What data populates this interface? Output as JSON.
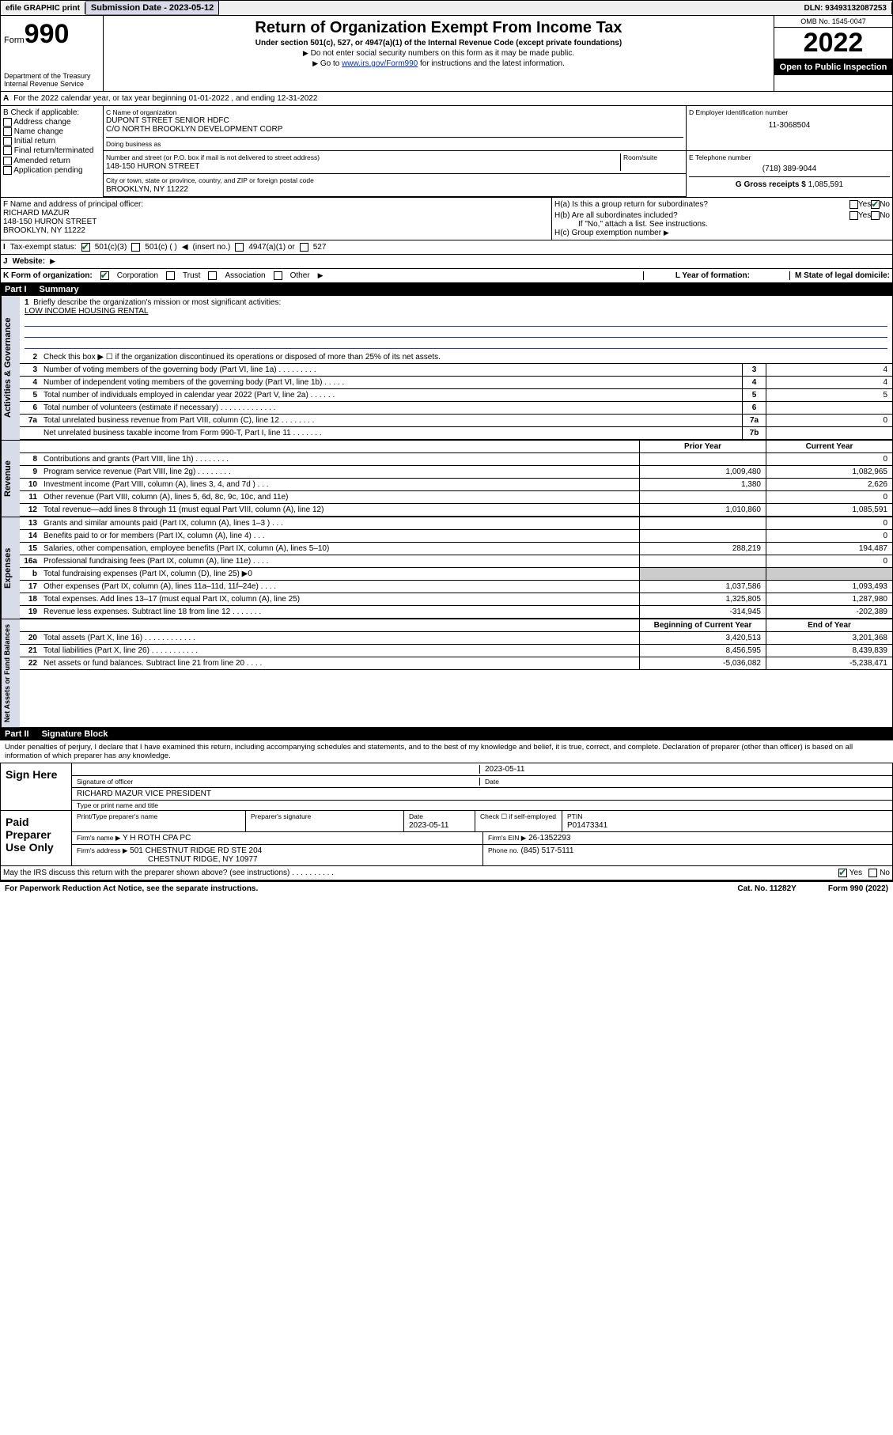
{
  "header_bar": {
    "efile": "efile GRAPHIC print",
    "sub_label": "Submission Date - 2023-05-12",
    "dln": "DLN: 93493132087253"
  },
  "top": {
    "form_prefix": "Form",
    "form_num": "990",
    "dept": "Department of the Treasury",
    "irs": "Internal Revenue Service",
    "title": "Return of Organization Exempt From Income Tax",
    "sub1": "Under section 501(c), 527, or 4947(a)(1) of the Internal Revenue Code (except private foundations)",
    "sub2": "Do not enter social security numbers on this form as it may be made public.",
    "sub3_pre": "Go to ",
    "sub3_link": "www.irs.gov/Form990",
    "sub3_post": " for instructions and the latest information.",
    "omb": "OMB No. 1545-0047",
    "year": "2022",
    "open": "Open to Public Inspection"
  },
  "line_a": "For the 2022 calendar year, or tax year beginning 01-01-2022    , and ending 12-31-2022",
  "box_b": {
    "hdr": "B Check if applicable:",
    "items": [
      "Address change",
      "Name change",
      "Initial return",
      "Final return/terminated",
      "Amended return",
      "Application pending"
    ]
  },
  "box_c": {
    "label": "C Name of organization",
    "name1": "DUPONT STREET SENIOR HDFC",
    "name2": "C/O NORTH BROOKLYN DEVELOPMENT CORP",
    "dba_label": "Doing business as",
    "addr_label": "Number and street (or P.O. box if mail is not delivered to street address)",
    "room_label": "Room/suite",
    "addr": "148-150 HURON STREET",
    "city_label": "City or town, state or province, country, and ZIP or foreign postal code",
    "city": "BROOKLYN, NY  11222"
  },
  "box_d": {
    "label": "D Employer identification number",
    "val": "11-3068504"
  },
  "box_e": {
    "label": "E Telephone number",
    "val": "(718) 389-9044"
  },
  "box_g": {
    "label": "G Gross receipts $",
    "val": "1,085,591"
  },
  "box_f": {
    "label": "F  Name and address of principal officer:",
    "name": "RICHARD MAZUR",
    "addr1": "148-150 HURON STREET",
    "addr2": "BROOKLYN, NY  11222"
  },
  "box_h": {
    "ha": "H(a)  Is this a group return for subordinates?",
    "hb": "H(b)  Are all subordinates included?",
    "hb2": "If \"No,\" attach a list. See instructions.",
    "hc": "H(c)  Group exemption number",
    "yes": "Yes",
    "no": "No"
  },
  "row_i": {
    "label": "Tax-exempt status:",
    "o1": "501(c)(3)",
    "o2": "501(c) (  )",
    "o2b": "(insert no.)",
    "o3": "4947(a)(1) or",
    "o4": "527"
  },
  "row_j": "Website:",
  "row_k": {
    "label": "K Form of organization:",
    "o1": "Corporation",
    "o2": "Trust",
    "o3": "Association",
    "o4": "Other"
  },
  "row_l": "L Year of formation:",
  "row_m": "M State of legal domicile:",
  "part1": {
    "pt": "Part I",
    "ttl": "Summary"
  },
  "tabs": {
    "t1": "Activities & Governance",
    "t2": "Revenue",
    "t3": "Expenses",
    "t4": "Net Assets or Fund Balances"
  },
  "line1": {
    "a": "Briefly describe the organization's mission or most significant activities:",
    "b": "LOW INCOME HOUSING RENTAL"
  },
  "line2": "Check this box ▶ ☐  if the organization discontinued its operations or disposed of more than 25% of its net assets.",
  "lines_gov": [
    {
      "n": "3",
      "t": "Number of voting members of the governing body (Part VI, line 1a)  .    .    .    .    .    .    .    .    .",
      "b": "3",
      "v": "4"
    },
    {
      "n": "4",
      "t": "Number of independent voting members of the governing body (Part VI, line 1b)  .    .    .    .    .",
      "b": "4",
      "v": "4"
    },
    {
      "n": "5",
      "t": "Total number of individuals employed in calendar year 2022 (Part V, line 2a)  .    .    .    .    .    .",
      "b": "5",
      "v": "5"
    },
    {
      "n": "6",
      "t": "Total number of volunteers (estimate if necessary)  .    .    .    .    .    .    .    .    .    .    .    .    .",
      "b": "6",
      "v": ""
    },
    {
      "n": "7a",
      "t": "Total unrelated business revenue from Part VIII, column (C), line 12  .    .    .    .    .    .    .    .",
      "b": "7a",
      "v": "0"
    },
    {
      "n": "",
      "t": "Net unrelated business taxable income from Form 990-T, Part I, line 11  .    .    .    .    .    .    .",
      "b": "7b",
      "v": ""
    }
  ],
  "col_hdr": {
    "p": "Prior Year",
    "c": "Current Year",
    "b": "Beginning of Current Year",
    "e": "End of Year"
  },
  "lines_rev": [
    {
      "n": "8",
      "t": "Contributions and grants (Part VIII, line 1h)  .    .    .    .    .    .    .    .",
      "p": "",
      "c": "0"
    },
    {
      "n": "9",
      "t": "Program service revenue (Part VIII, line 2g)  .    .    .    .    .    .    .    .",
      "p": "1,009,480",
      "c": "1,082,965"
    },
    {
      "n": "10",
      "t": "Investment income (Part VIII, column (A), lines 3, 4, and 7d )  .    .    .",
      "p": "1,380",
      "c": "2,626"
    },
    {
      "n": "11",
      "t": "Other revenue (Part VIII, column (A), lines 5, 6d, 8c, 9c, 10c, and 11e)",
      "p": "",
      "c": "0"
    },
    {
      "n": "12",
      "t": "Total revenue—add lines 8 through 11 (must equal Part VIII, column (A), line 12)",
      "p": "1,010,860",
      "c": "1,085,591"
    }
  ],
  "lines_exp": [
    {
      "n": "13",
      "t": "Grants and similar amounts paid (Part IX, column (A), lines 1–3 )  .    .    .",
      "p": "",
      "c": "0"
    },
    {
      "n": "14",
      "t": "Benefits paid to or for members (Part IX, column (A), line 4)  .    .    .",
      "p": "",
      "c": "0"
    },
    {
      "n": "15",
      "t": "Salaries, other compensation, employee benefits (Part IX, column (A), lines 5–10)",
      "p": "288,219",
      "c": "194,487"
    },
    {
      "n": "16a",
      "t": "Professional fundraising fees (Part IX, column (A), line 11e)  .    .    .    .",
      "p": "",
      "c": "0"
    },
    {
      "n": "b",
      "t": "Total fundraising expenses (Part IX, column (D), line 25) ▶0",
      "p": "sh",
      "c": "sh"
    },
    {
      "n": "17",
      "t": "Other expenses (Part IX, column (A), lines 11a–11d, 11f–24e)  .    .    .    .",
      "p": "1,037,586",
      "c": "1,093,493"
    },
    {
      "n": "18",
      "t": "Total expenses. Add lines 13–17 (must equal Part IX, column (A), line 25)",
      "p": "1,325,805",
      "c": "1,287,980"
    },
    {
      "n": "19",
      "t": "Revenue less expenses. Subtract line 18 from line 12  .    .    .    .    .    .    .",
      "p": "-314,945",
      "c": "-202,389"
    }
  ],
  "lines_net": [
    {
      "n": "20",
      "t": "Total assets (Part X, line 16)  .    .    .    .    .    .    .    .    .    .    .    .",
      "p": "3,420,513",
      "c": "3,201,368"
    },
    {
      "n": "21",
      "t": "Total liabilities (Part X, line 26)  .    .    .    .    .    .    .    .    .    .    .",
      "p": "8,456,595",
      "c": "8,439,839"
    },
    {
      "n": "22",
      "t": "Net assets or fund balances. Subtract line 21 from line 20  .    .    .    .",
      "p": "-5,036,082",
      "c": "-5,238,471"
    }
  ],
  "part2": {
    "pt": "Part II",
    "ttl": "Signature Block"
  },
  "decl": "Under penalties of perjury, I declare that I have examined this return, including accompanying schedules and statements, and to the best of my knowledge and belief, it is true, correct, and complete. Declaration of preparer (other than officer) is based on all information of which preparer has any knowledge.",
  "sign": {
    "here": "Sign Here",
    "sig_lbl": "Signature of officer",
    "date": "2023-05-11",
    "date_lbl": "Date",
    "name": "RICHARD MAZUR  VICE PRESIDENT",
    "name_lbl": "Type or print name and title"
  },
  "prep": {
    "title": "Paid Preparer Use Only",
    "h1": "Print/Type preparer's name",
    "h2": "Preparer's signature",
    "h3": "Date",
    "h3v": "2023-05-11",
    "h4": "Check ☐ if self-employed",
    "h5": "PTIN",
    "h5v": "P01473341",
    "firm_l": "Firm's name   ▶",
    "firm": "Y H ROTH CPA PC",
    "ein_l": "Firm's EIN ▶",
    "ein": "26-1352293",
    "addr_l": "Firm's address ▶",
    "addr1": "501 CHESTNUT RIDGE RD STE 204",
    "addr2": "CHESTNUT RIDGE, NY  10977",
    "phone_l": "Phone no.",
    "phone": "(845) 517-5111"
  },
  "discuss": "May the IRS discuss this return with the preparer shown above? (see instructions)   .    .    .    .    .    .    .    .    .    .",
  "foot": {
    "a": "For Paperwork Reduction Act Notice, see the separate instructions.",
    "b": "Cat. No. 11282Y",
    "c": "Form 990 (2022)"
  },
  "colors": {
    "link": "#0033cc",
    "check": "#0a6b2a",
    "shade": "#cccccc",
    "tab_bg": "#d8dce8"
  }
}
